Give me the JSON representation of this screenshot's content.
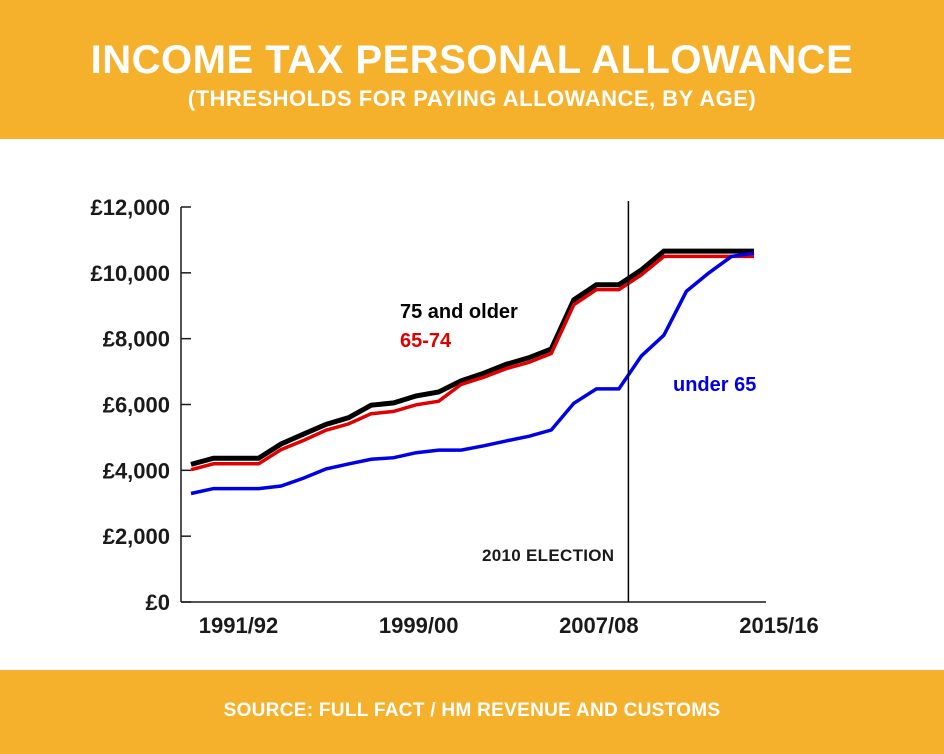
{
  "header": {
    "title": "INCOME TAX PERSONAL ALLOWANCE",
    "subtitle": "(THRESHOLDS FOR PAYING ALLOWANCE, BY AGE)"
  },
  "footer": {
    "source": "SOURCE: FULL FACT / HM REVENUE AND CUSTOMS"
  },
  "chart_data": {
    "type": "line",
    "title": "INCOME TAX PERSONAL ALLOWANCE",
    "subtitle": "(THRESHOLDS FOR PAYING ALLOWANCE, BY AGE)",
    "xlabel": "",
    "ylabel": "",
    "ylim": [
      0,
      12000
    ],
    "yticks": [
      0,
      2000,
      4000,
      6000,
      8000,
      10000,
      12000
    ],
    "ytick_labels": [
      "£0",
      "£2,000",
      "£4,000",
      "£6,000",
      "£8,000",
      "£10,000",
      "£12,000"
    ],
    "x": [
      "1990/91",
      "1991/92",
      "1992/93",
      "1993/94",
      "1994/95",
      "1995/96",
      "1996/97",
      "1997/98",
      "1998/99",
      "1999/00",
      "2000/01",
      "2001/02",
      "2002/03",
      "2003/04",
      "2004/05",
      "2005/06",
      "2006/07",
      "2007/08",
      "2008/09",
      "2009/10",
      "2010/11",
      "2011/12",
      "2012/13",
      "2013/14",
      "2014/15",
      "2015/16"
    ],
    "xtick_labels": [
      "1991/92",
      "1999/00",
      "2007/08",
      "2015/16"
    ],
    "series": [
      {
        "name": "75 and older",
        "color": "#000000",
        "values": [
          4180,
          4370,
          4370,
          4370,
          4800,
          5100,
          5400,
          5600,
          5980,
          6050,
          6260,
          6380,
          6720,
          6950,
          7220,
          7420,
          7690,
          9180,
          9640,
          9640,
          10090,
          10660,
          10660,
          10660,
          10660,
          10660
        ]
      },
      {
        "name": "65-74",
        "color": "#e10000",
        "values": [
          4020,
          4200,
          4200,
          4200,
          4630,
          4910,
          5220,
          5410,
          5720,
          5790,
          5990,
          6100,
          6610,
          6830,
          7090,
          7280,
          7550,
          9030,
          9490,
          9490,
          9940,
          10500,
          10500,
          10500,
          10500,
          10500
        ]
      },
      {
        "name": "under 65",
        "color": "#0000e6",
        "values": [
          3295,
          3445,
          3445,
          3445,
          3525,
          3765,
          4045,
          4195,
          4335,
          4385,
          4535,
          4615,
          4615,
          4745,
          4895,
          5035,
          5225,
          6035,
          6475,
          6475,
          7475,
          8105,
          9440,
          10000,
          10500,
          10600
        ]
      }
    ],
    "annotations": [
      {
        "text": "2010 ELECTION",
        "x": "2010/11"
      }
    ],
    "legend": "inline labels beside series"
  }
}
